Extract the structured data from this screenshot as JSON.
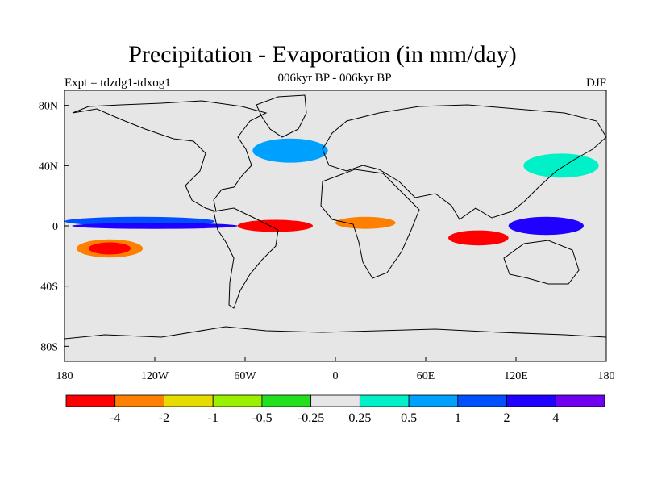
{
  "header": {
    "title": "Precipitation - Evaporation (in mm/day)",
    "subtitle": "006kyr BP - 006kyr BP",
    "experiment": "Expt = tdzdg1-tdxog1",
    "season": "DJF"
  },
  "axes": {
    "x_ticks": [
      {
        "lon": -180,
        "label": "180"
      },
      {
        "lon": -120,
        "label": "120W"
      },
      {
        "lon": -60,
        "label": "60W"
      },
      {
        "lon": 0,
        "label": "0"
      },
      {
        "lon": 60,
        "label": "60E"
      },
      {
        "lon": 120,
        "label": "120E"
      },
      {
        "lon": 180,
        "label": "180"
      }
    ],
    "y_ticks": [
      {
        "lat": 80,
        "label": "80N"
      },
      {
        "lat": 40,
        "label": "40N"
      },
      {
        "lat": 0,
        "label": "0"
      },
      {
        "lat": -40,
        "label": "40S"
      },
      {
        "lat": -80,
        "label": "80S"
      }
    ],
    "lon_range": [
      -180,
      180
    ],
    "lat_range": [
      -90,
      90
    ]
  },
  "colorbar": {
    "colors": [
      "#ff0000",
      "#ff8000",
      "#e6dc00",
      "#99f000",
      "#22e01e",
      "#e6e6e6",
      "#00f0c8",
      "#00a0ff",
      "#0050ff",
      "#2000ff",
      "#7000f0"
    ],
    "labels": [
      "-4",
      "-2",
      "-1",
      "-0.5",
      "-0.25",
      "0.25",
      "0.5",
      "1",
      "2",
      "4"
    ]
  },
  "map": {
    "background_color": "#e6e6e6",
    "regions": [
      {
        "lon": -150,
        "lat": -15,
        "rx": 22,
        "ry": 6,
        "color": "#ff8000"
      },
      {
        "lon": -150,
        "lat": -15,
        "rx": 14,
        "ry": 4,
        "color": "#ff0000"
      },
      {
        "lon": -130,
        "lat": 3,
        "rx": 50,
        "ry": 3,
        "color": "#0050ff"
      },
      {
        "lon": -120,
        "lat": 0,
        "rx": 55,
        "ry": 2,
        "color": "#2000ff"
      },
      {
        "lon": -40,
        "lat": 0,
        "rx": 25,
        "ry": 4,
        "color": "#ff0000"
      },
      {
        "lon": 20,
        "lat": 2,
        "rx": 20,
        "ry": 4,
        "color": "#ff8000"
      },
      {
        "lon": 140,
        "lat": 0,
        "rx": 25,
        "ry": 6,
        "color": "#2000ff"
      },
      {
        "lon": 95,
        "lat": -8,
        "rx": 20,
        "ry": 5,
        "color": "#ff0000"
      },
      {
        "lon": -30,
        "lat": 50,
        "rx": 25,
        "ry": 8,
        "color": "#00a0ff"
      },
      {
        "lon": 150,
        "lat": 40,
        "rx": 25,
        "ry": 8,
        "color": "#00f0c8"
      }
    ]
  }
}
